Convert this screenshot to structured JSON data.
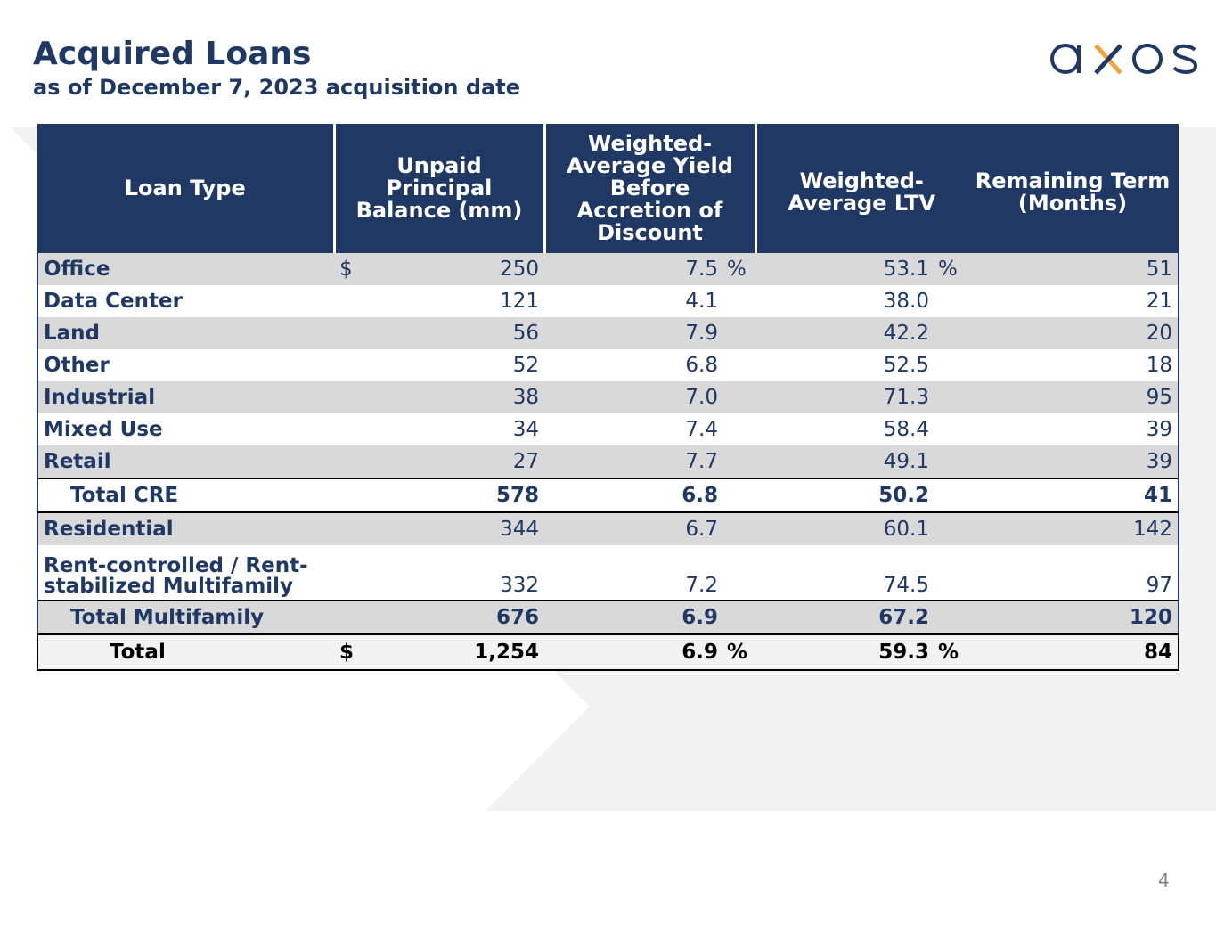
{
  "header": {
    "title": "Acquired Loans",
    "subtitle": "as of December 7, 2023 acquisition date",
    "page_number": "4"
  },
  "logo": {
    "text": "axos",
    "colors": {
      "primary": "#1f3864",
      "accent": "#f2a33a"
    }
  },
  "colors": {
    "header_bg": "#1f3864",
    "row_shade": "#d9d9d9",
    "text": "#1f3864"
  },
  "table": {
    "headers": {
      "loan_type": "Loan Type",
      "upb": "Unpaid Principal Balance (mm)",
      "yield": "Weighted-Average Yield Before Accretion of Discount",
      "ltv": "Weighted-Average LTV",
      "term": "Remaining Term (Months)"
    },
    "currency_symbol": "$",
    "percent_symbol": "%",
    "rows": {
      "office": {
        "type": "Office",
        "upb": "250",
        "yield": "7.5",
        "ltv": "53.1",
        "term": "51"
      },
      "data_center": {
        "type": "Data Center",
        "upb": "121",
        "yield": "4.1",
        "ltv": "38.0",
        "term": "21"
      },
      "land": {
        "type": "Land",
        "upb": "56",
        "yield": "7.9",
        "ltv": "42.2",
        "term": "20"
      },
      "other": {
        "type": "Other",
        "upb": "52",
        "yield": "6.8",
        "ltv": "52.5",
        "term": "18"
      },
      "industrial": {
        "type": "Industrial",
        "upb": "38",
        "yield": "7.0",
        "ltv": "71.3",
        "term": "95"
      },
      "mixed_use": {
        "type": "Mixed Use",
        "upb": "34",
        "yield": "7.4",
        "ltv": "58.4",
        "term": "39"
      },
      "retail": {
        "type": "Retail",
        "upb": "27",
        "yield": "7.7",
        "ltv": "49.1",
        "term": "39"
      },
      "total_cre": {
        "type": "Total CRE",
        "upb": "578",
        "yield": "6.8",
        "ltv": "50.2",
        "term": "41"
      },
      "residential": {
        "type": "Residential",
        "upb": "344",
        "yield": "6.7",
        "ltv": "60.1",
        "term": "142"
      },
      "rent_controlled": {
        "type": "Rent-controlled / Rent-stabilized Multifamily",
        "upb": "332",
        "yield": "7.2",
        "ltv": "74.5",
        "term": "97"
      },
      "total_multifamily": {
        "type": "Total Multifamily",
        "upb": "676",
        "yield": "6.9",
        "ltv": "67.2",
        "term": "120"
      },
      "total": {
        "type": "Total",
        "upb": "1,254",
        "yield": "6.9",
        "ltv": "59.3",
        "term": "84"
      }
    }
  }
}
